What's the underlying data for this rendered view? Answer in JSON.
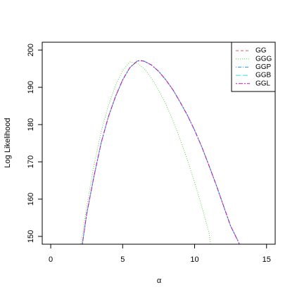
{
  "chart_data": {
    "type": "line",
    "xlabel": "α",
    "ylabel": "Log Likelihood",
    "xlim": [
      -0.59,
      15.6
    ],
    "ylim": [
      147.9,
      202.1
    ],
    "xticks": [
      0,
      5,
      10,
      15
    ],
    "yticks": [
      150,
      160,
      170,
      180,
      190,
      200
    ],
    "legend": "top-right",
    "series": [
      {
        "name": "GG",
        "color": "#DF536B",
        "dash": "4 3",
        "x": [
          2.2,
          2.5,
          3,
          3.5,
          4,
          4.5,
          5,
          5.5,
          6,
          6.2,
          6.5,
          7,
          7.5,
          8,
          8.5,
          9,
          9.5,
          10,
          10.5,
          11,
          11.5,
          12,
          12.5,
          13,
          13.1
        ],
        "values": [
          148,
          156,
          166,
          175,
          182,
          187.5,
          192,
          195.3,
          197,
          197.2,
          197,
          196,
          194.3,
          192,
          189.3,
          186,
          182.5,
          178.5,
          174,
          169,
          163.8,
          158.3,
          152.8,
          148.9,
          148
        ]
      },
      {
        "name": "GGG",
        "color": "#61D04F",
        "dash": "1 2",
        "x": [
          2.1,
          2.5,
          3,
          3.5,
          4,
          4.5,
          5,
          5.5,
          6,
          6.5,
          7,
          7.5,
          8,
          8.5,
          9,
          9.5,
          10,
          10.5,
          11,
          11.1
        ],
        "values": [
          148,
          158,
          169,
          178,
          185,
          190.5,
          194.5,
          196.8,
          196.5,
          195,
          192.5,
          189.2,
          185.5,
          181,
          176,
          170.5,
          164.5,
          158,
          151,
          148
        ]
      },
      {
        "name": "GGP",
        "color": "#2297E6",
        "dash": "1 2 5 2",
        "x": [
          2.2,
          2.5,
          3,
          3.5,
          4,
          4.5,
          5,
          5.5,
          6,
          6.2,
          6.5,
          7,
          7.5,
          8,
          8.5,
          9,
          9.5,
          10,
          10.5,
          11,
          11.5,
          12,
          12.5,
          13,
          13.1
        ],
        "values": [
          148,
          156,
          166,
          175,
          182,
          187.5,
          192,
          195.3,
          197,
          197.2,
          197,
          196,
          194.3,
          192,
          189.3,
          186,
          182.5,
          178.5,
          174,
          169,
          163.8,
          158.3,
          152.8,
          148.9,
          148
        ]
      },
      {
        "name": "GGB",
        "color": "#28E2E5",
        "dash": "7 3",
        "x": [
          2.2,
          2.5,
          3,
          3.5,
          4,
          4.5,
          5,
          5.5,
          6,
          6.2,
          6.5,
          7,
          7.5,
          8,
          8.5,
          9,
          9.5,
          10,
          10.5,
          11,
          11.5,
          12,
          12.5,
          13,
          13.1
        ],
        "values": [
          148,
          156,
          166,
          175,
          182,
          187.5,
          192,
          195.3,
          197,
          197.2,
          197,
          196,
          194.3,
          192,
          189.3,
          186,
          182.5,
          178.5,
          174,
          169,
          163.8,
          158.3,
          152.8,
          148.9,
          148
        ]
      },
      {
        "name": "GGL",
        "color": "#CD0BBC",
        "dash": "2 2 6 2",
        "x": [
          2.2,
          2.5,
          3,
          3.5,
          4,
          4.5,
          5,
          5.5,
          6,
          6.2,
          6.5,
          7,
          7.5,
          8,
          8.5,
          9,
          9.5,
          10,
          10.5,
          11,
          11.5,
          12,
          12.5,
          13,
          13.1
        ],
        "values": [
          148,
          156,
          166,
          175,
          182,
          187.5,
          192,
          195.3,
          197,
          197.2,
          197,
          196,
          194.3,
          192,
          189.3,
          186,
          182.5,
          178.5,
          174,
          169,
          163.8,
          158.3,
          152.8,
          148.9,
          148
        ]
      }
    ]
  }
}
